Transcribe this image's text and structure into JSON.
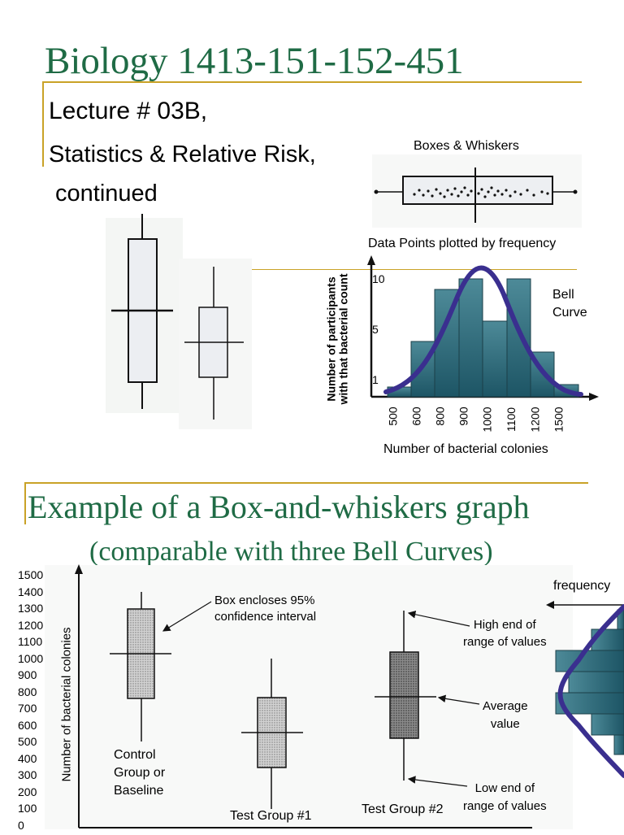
{
  "slide1": {
    "title": "Biology 1413-151-152-451",
    "subtitle_line1": "Lecture # 03B,",
    "subtitle_line2": "Statistics & Relative Risk,",
    "subtitle_line3": "continued",
    "boxes_whiskers_label": "Boxes & Whiskers",
    "frequency_plot_label": "Data Points plotted by frequency",
    "bell_curve_label_1": "Bell",
    "bell_curve_label_2": "Curve",
    "y_axis_label_1": "Number of participants",
    "y_axis_label_2": "with that bacterial count",
    "x_axis_label": "Number of bacterial colonies",
    "y_ticks": [
      "10",
      "5",
      "1"
    ],
    "x_ticks": [
      "500",
      "600",
      "800",
      "900",
      "1000",
      "1100",
      "1200",
      "1500"
    ]
  },
  "slide2": {
    "title": "Example of a Box-and-whiskers graph",
    "subtitle": "(comparable with three Bell Curves)",
    "y_axis_label": "Number of bacterial colonies",
    "y_ticks": [
      "1500",
      "1400",
      "1300",
      "1200",
      "1100",
      "1000",
      "900",
      "800",
      "700",
      "600",
      "500",
      "400",
      "300",
      "200",
      "100",
      "0"
    ],
    "annotations": {
      "box_encloses_1": "Box encloses 95%",
      "box_encloses_2": "confidence interval",
      "high_end_1": "High end of",
      "high_end_2": "range of values",
      "average_1": "Average",
      "average_2": "value",
      "low_end_1": "Low end of",
      "low_end_2": "range of values",
      "frequency": "frequency"
    },
    "groups": {
      "control_1": "Control",
      "control_2": "Group or",
      "control_3": "Baseline",
      "test1": "Test Group #1",
      "test2": "Test Group #2"
    }
  },
  "colors": {
    "title_green": "#1f6b45",
    "rule_gold": "#c9a227",
    "bar_teal": "#2e6e7e",
    "bell_purple": "#3a2f8f"
  }
}
